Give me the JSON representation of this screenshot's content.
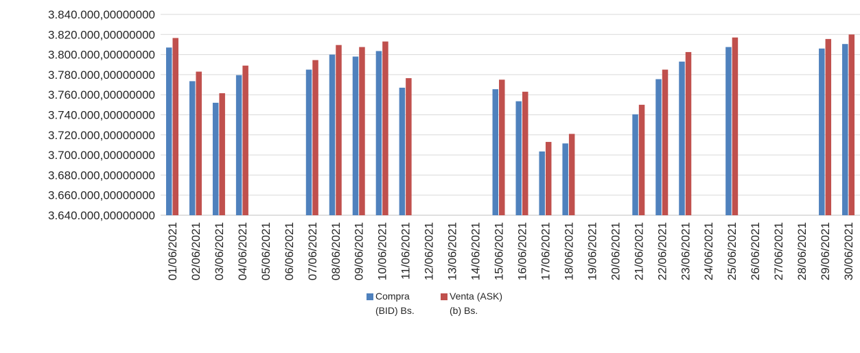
{
  "chart_data": {
    "type": "bar",
    "title": "",
    "xlabel": "",
    "ylabel": "",
    "ylim": [
      3640000,
      3840000
    ],
    "y_tick_step": 20000,
    "y_tick_labels": [
      "3.640.000,00000000",
      "3.660.000,00000000",
      "3.680.000,00000000",
      "3.700.000,00000000",
      "3.720.000,00000000",
      "3.740.000,00000000",
      "3.760.000,00000000",
      "3.780.000,00000000",
      "3.800.000,00000000",
      "3.820.000,00000000",
      "3.840.000,00000000"
    ],
    "grid": true,
    "legend_position": "bottom",
    "categories": [
      "01/06/2021",
      "02/06/2021",
      "03/06/2021",
      "04/06/2021",
      "05/06/2021",
      "06/06/2021",
      "07/06/2021",
      "08/06/2021",
      "09/06/2021",
      "10/06/2021",
      "11/06/2021",
      "12/06/2021",
      "13/06/2021",
      "14/06/2021",
      "15/06/2021",
      "16/06/2021",
      "17/06/2021",
      "18/06/2021",
      "19/06/2021",
      "20/06/2021",
      "21/06/2021",
      "22/06/2021",
      "23/06/2021",
      "24/06/2021",
      "25/06/2021",
      "26/06/2021",
      "27/06/2021",
      "28/06/2021",
      "29/06/2021",
      "30/06/2021"
    ],
    "series": [
      {
        "name": "Compra (BID) Bs.",
        "color": "#4F81BD",
        "values": [
          3807000,
          3773500,
          3752000,
          3779500,
          null,
          null,
          3785000,
          3800000,
          3798000,
          3803500,
          3767000,
          null,
          null,
          null,
          3765500,
          3753500,
          3703500,
          3711500,
          null,
          null,
          3740500,
          3775500,
          3793000,
          null,
          3807500,
          null,
          null,
          null,
          3806000,
          3810500
        ]
      },
      {
        "name": "Venta (ASK) (b) Bs.",
        "color": "#C0504D",
        "values": [
          3816500,
          3783000,
          3761500,
          3789000,
          null,
          null,
          3794500,
          3809500,
          3807500,
          3813000,
          3776500,
          null,
          null,
          null,
          3775000,
          3763000,
          3713000,
          3721000,
          null,
          null,
          3750000,
          3785000,
          3802500,
          null,
          3817000,
          null,
          null,
          null,
          3815500,
          3820000
        ]
      }
    ]
  },
  "legend": [
    {
      "label": "Compra (BID) Bs.",
      "color": "#4F81BD"
    },
    {
      "label": "Venta (ASK) (b) Bs.",
      "color": "#C0504D"
    }
  ]
}
